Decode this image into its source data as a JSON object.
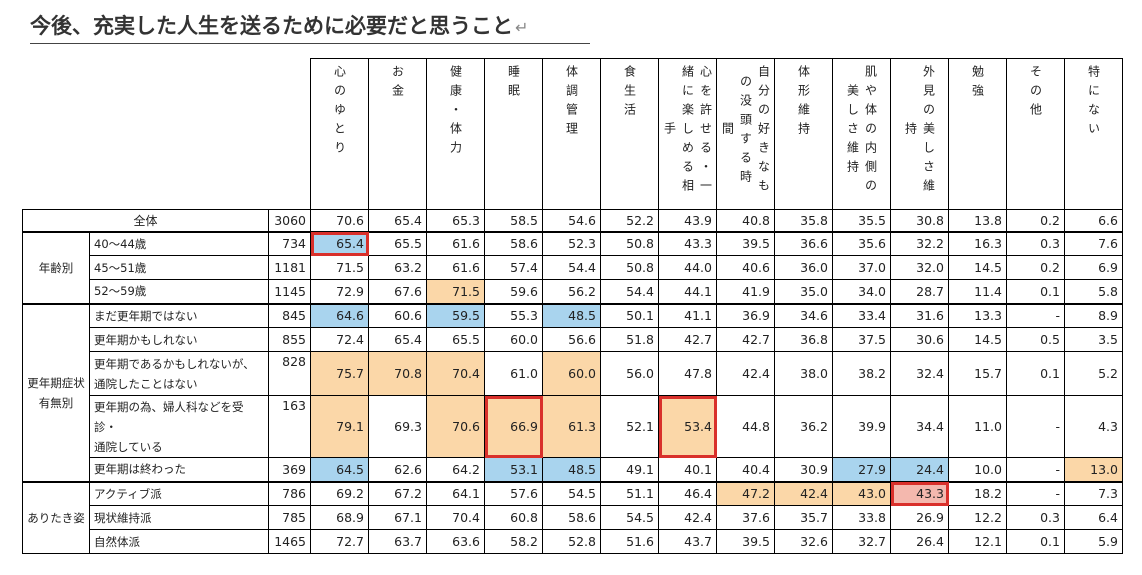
{
  "title": "今後、充実した人生を送るために必要だと思うこと",
  "return_mark": "↵",
  "colors": {
    "blue_highlight": "#a9d4ee",
    "orange_highlight": "#fbd7a8",
    "pink_highlight": "#f4b8ae",
    "box_outline": "#d9302b"
  },
  "chart_data": {
    "type": "table",
    "columns": [
      "心のゆとり",
      "お金",
      "健康・体力",
      "睡眠",
      "体調管理",
      "食生活",
      "心を許せる・一緒に楽しめる相手",
      "自分の好きなことに没頭する時間",
      "体形維持",
      "肌や体の内側の美しさ維持",
      "外見の美しさ維持",
      "勉強",
      "その他",
      "特にない"
    ],
    "column_display": [
      [
        "心のゆとり"
      ],
      [
        "お金"
      ],
      [
        "健康・体力"
      ],
      [
        "睡眠"
      ],
      [
        "体調管理"
      ],
      [
        "食生活"
      ],
      [
        "心を許せる・一",
        "緒に楽しめる相",
        "手"
      ],
      [
        "自分の好きなも",
        "の没頭する時",
        "間"
      ],
      [
        "体形維持"
      ],
      [
        "肌や体の内側の",
        "美しさ維持"
      ],
      [
        "外見の美しさ維",
        "持"
      ],
      [
        "勉強"
      ],
      [
        "その他"
      ],
      [
        "特にない"
      ]
    ],
    "rows": [
      {
        "group": "",
        "label": "全体",
        "n": "3060",
        "values": [
          "70.6",
          "65.4",
          "65.3",
          "58.5",
          "54.6",
          "52.2",
          "43.9",
          "40.8",
          "35.8",
          "35.5",
          "30.8",
          "13.8",
          "0.2",
          "6.6"
        ]
      },
      {
        "group": "年齢別",
        "label": "40～44歳",
        "n": "734",
        "values": [
          "65.4",
          "65.5",
          "61.6",
          "58.6",
          "52.3",
          "50.8",
          "43.3",
          "39.5",
          "36.6",
          "35.6",
          "32.2",
          "16.3",
          "0.3",
          "7.6"
        ]
      },
      {
        "group": "年齢別",
        "label": "45～51歳",
        "n": "1181",
        "values": [
          "71.5",
          "63.2",
          "61.6",
          "57.4",
          "54.4",
          "50.8",
          "44.0",
          "40.6",
          "36.0",
          "37.0",
          "32.0",
          "14.5",
          "0.2",
          "6.9"
        ]
      },
      {
        "group": "年齢別",
        "label": "52～59歳",
        "n": "1145",
        "values": [
          "72.9",
          "67.6",
          "71.5",
          "59.6",
          "56.2",
          "54.4",
          "44.1",
          "41.9",
          "35.0",
          "34.0",
          "28.7",
          "11.4",
          "0.1",
          "5.8"
        ]
      },
      {
        "group": "更年期症状有無別",
        "label": "まだ更年期ではない",
        "n": "845",
        "values": [
          "64.6",
          "60.6",
          "59.5",
          "55.3",
          "48.5",
          "50.1",
          "41.1",
          "36.9",
          "34.6",
          "33.4",
          "31.6",
          "13.3",
          "-",
          "8.9"
        ]
      },
      {
        "group": "更年期症状有無別",
        "label": "更年期かもしれない",
        "n": "855",
        "values": [
          "72.4",
          "65.4",
          "65.5",
          "60.0",
          "56.6",
          "51.8",
          "42.7",
          "42.7",
          "36.8",
          "37.5",
          "30.6",
          "14.5",
          "0.5",
          "3.5"
        ]
      },
      {
        "group": "更年期症状有無別",
        "label": "更年期であるかもしれないが、通院したことはない",
        "n": "828",
        "label_lines": [
          "更年期であるかもしれないが、",
          "通院したことはない"
        ],
        "values": [
          "75.7",
          "70.8",
          "70.4",
          "61.0",
          "60.0",
          "56.0",
          "47.8",
          "42.4",
          "38.0",
          "38.2",
          "32.4",
          "15.7",
          "0.1",
          "5.2"
        ]
      },
      {
        "group": "更年期症状有無別",
        "label": "更年期の為、婦人科などを受診・通院している",
        "n": "163",
        "label_lines": [
          "更年期の為、婦人科などを受",
          "診・",
          "通院している"
        ],
        "values": [
          "79.1",
          "69.3",
          "70.6",
          "66.9",
          "61.3",
          "52.1",
          "53.4",
          "44.8",
          "36.2",
          "39.9",
          "34.4",
          "11.0",
          "-",
          "4.3"
        ]
      },
      {
        "group": "更年期症状有無別",
        "label": "更年期は終わった",
        "n": "369",
        "values": [
          "64.5",
          "62.6",
          "64.2",
          "53.1",
          "48.5",
          "49.1",
          "40.1",
          "40.4",
          "30.9",
          "27.9",
          "24.4",
          "10.0",
          "-",
          "13.0"
        ]
      },
      {
        "group": "ありたき姿",
        "label": "アクティブ派",
        "n": "786",
        "values": [
          "69.2",
          "67.2",
          "64.1",
          "57.6",
          "54.5",
          "51.1",
          "46.4",
          "47.2",
          "42.4",
          "43.0",
          "43.3",
          "18.2",
          "-",
          "7.3"
        ]
      },
      {
        "group": "ありたき姿",
        "label": "現状維持派",
        "n": "785",
        "values": [
          "68.9",
          "67.1",
          "70.4",
          "60.8",
          "58.6",
          "54.5",
          "42.4",
          "37.6",
          "35.7",
          "33.8",
          "26.9",
          "12.2",
          "0.3",
          "6.4"
        ]
      },
      {
        "group": "ありたき姿",
        "label": "自然体派",
        "n": "1465",
        "values": [
          "72.7",
          "63.7",
          "63.6",
          "58.2",
          "52.8",
          "51.6",
          "43.7",
          "39.5",
          "32.6",
          "32.7",
          "26.4",
          "12.1",
          "0.1",
          "5.9"
        ]
      }
    ],
    "groups": [
      {
        "label": "年齢別",
        "lines": [
          "年齢別"
        ]
      },
      {
        "label": "更年期症状有無別",
        "lines": [
          "更年期症状",
          "有無別"
        ]
      },
      {
        "label": "ありたき姿",
        "lines": [
          "ありたき姿"
        ]
      }
    ],
    "highlights": [
      {
        "row": 1,
        "col": 0,
        "color": "blue",
        "boxed": true
      },
      {
        "row": 3,
        "col": 2,
        "color": "orange"
      },
      {
        "row": 4,
        "col": 0,
        "color": "blue"
      },
      {
        "row": 4,
        "col": 2,
        "color": "blue"
      },
      {
        "row": 4,
        "col": 4,
        "color": "blue"
      },
      {
        "row": 6,
        "col": 0,
        "color": "orange"
      },
      {
        "row": 6,
        "col": 1,
        "color": "orange"
      },
      {
        "row": 6,
        "col": 2,
        "color": "orange"
      },
      {
        "row": 6,
        "col": 4,
        "color": "orange"
      },
      {
        "row": 7,
        "col": 0,
        "color": "orange"
      },
      {
        "row": 7,
        "col": 2,
        "color": "orange"
      },
      {
        "row": 7,
        "col": 3,
        "color": "orange",
        "boxed": true
      },
      {
        "row": 7,
        "col": 4,
        "color": "orange"
      },
      {
        "row": 7,
        "col": 6,
        "color": "orange",
        "boxed": true
      },
      {
        "row": 8,
        "col": 0,
        "color": "blue"
      },
      {
        "row": 8,
        "col": 3,
        "color": "blue"
      },
      {
        "row": 8,
        "col": 4,
        "color": "blue"
      },
      {
        "row": 8,
        "col": 9,
        "color": "blue"
      },
      {
        "row": 8,
        "col": 10,
        "color": "blue"
      },
      {
        "row": 8,
        "col": 13,
        "color": "orange"
      },
      {
        "row": 9,
        "col": 7,
        "color": "orange"
      },
      {
        "row": 9,
        "col": 8,
        "color": "orange"
      },
      {
        "row": 9,
        "col": 9,
        "color": "orange"
      },
      {
        "row": 9,
        "col": 10,
        "color": "pink",
        "boxed": true
      }
    ]
  }
}
